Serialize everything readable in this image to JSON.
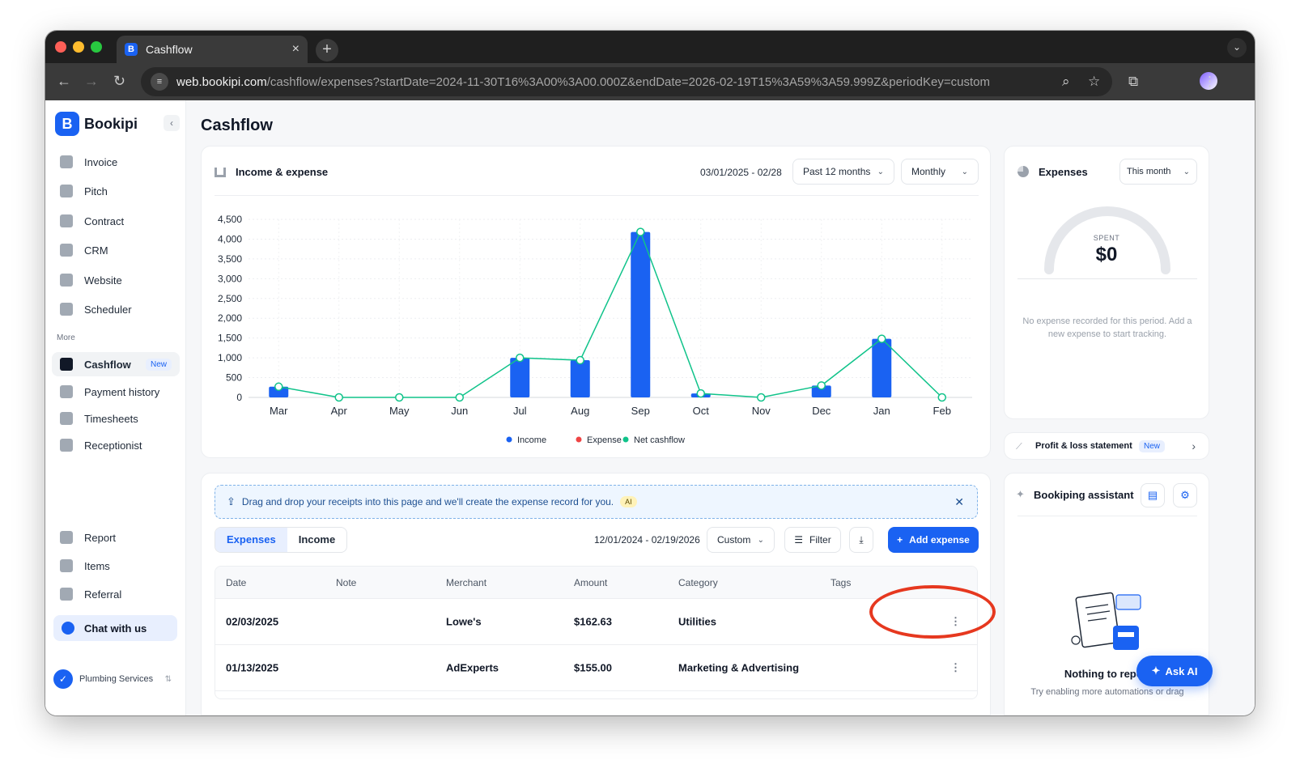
{
  "browser": {
    "tab_title": "Cashflow",
    "url_domain": "web.bookipi.com",
    "url_path": "/cashflow/expenses?startDate=2024-11-30T16%3A00%3A00.000Z&endDate=2026-02-19T15%3A59%3A59.999Z&periodKey=custom"
  },
  "sidebar": {
    "brand": "Bookipi",
    "primary": [
      {
        "label": "Invoice"
      },
      {
        "label": "Pitch"
      },
      {
        "label": "Contract"
      },
      {
        "label": "CRM"
      },
      {
        "label": "Website"
      },
      {
        "label": "Scheduler"
      }
    ],
    "more_label": "More",
    "more": [
      {
        "label": "Cashflow",
        "badge": "New",
        "active": true
      },
      {
        "label": "Payment history"
      },
      {
        "label": "Timesheets"
      },
      {
        "label": "Receptionist"
      }
    ],
    "bottom": [
      {
        "label": "Report"
      },
      {
        "label": "Items"
      },
      {
        "label": "Referral"
      }
    ],
    "chat_label": "Chat with us",
    "workspace": "Plumbing Services"
  },
  "page": {
    "title": "Cashflow"
  },
  "income_card": {
    "title": "Income & expense",
    "date_range": "03/01/2025 - 02/28",
    "period_select": "Past 12 months",
    "interval_select": "Monthly"
  },
  "chart_data": {
    "type": "bar",
    "title": "Income & expense",
    "categories": [
      "Mar",
      "Apr",
      "May",
      "Jun",
      "Jul",
      "Aug",
      "Sep",
      "Oct",
      "Nov",
      "Dec",
      "Jan",
      "Feb"
    ],
    "series": [
      {
        "name": "Income",
        "type": "bar",
        "color": "#1a62f2",
        "values": [
          270,
          0,
          0,
          0,
          1000,
          940,
          4180,
          100,
          0,
          300,
          1480,
          0
        ]
      },
      {
        "name": "Expense",
        "type": "bar",
        "color": "#ef4444",
        "values": [
          0,
          0,
          0,
          0,
          0,
          0,
          0,
          0,
          0,
          0,
          0,
          0
        ]
      },
      {
        "name": "Net cashflow",
        "type": "line",
        "color": "#10c38a",
        "values": [
          270,
          0,
          0,
          0,
          1000,
          940,
          4180,
          100,
          0,
          300,
          1480,
          0
        ]
      }
    ],
    "yticks": [
      "4,500",
      "4,000",
      "3,500",
      "3,000",
      "2,500",
      "2,000",
      "1,500",
      "1,000",
      "500",
      "0"
    ],
    "ylim": [
      0,
      4500
    ],
    "grid": true,
    "legend_position": "bottom"
  },
  "expenses_card": {
    "title": "Expenses",
    "period_select": "This month",
    "spent_label": "SPENT",
    "spent_value": "$0",
    "empty_message": "No expense recorded for this period. Add a new expense to start tracking."
  },
  "pl_card": {
    "title": "Profit & loss statement",
    "badge": "New"
  },
  "assistant_card": {
    "title": "Bookiping assistant",
    "empty_title": "Nothing to report",
    "empty_sub": "Try enabling more automations or drag"
  },
  "ask_ai": "Ask AI",
  "banner": {
    "text": "Drag and drop your receipts into this page and we'll create the expense record for you.",
    "ai": "AI"
  },
  "tabs": [
    "Expenses",
    "Income"
  ],
  "list_controls": {
    "date_range": "12/01/2024 - 02/19/2026",
    "period_select": "Custom",
    "filter_label": "Filter",
    "add_label": "Add expense"
  },
  "table": {
    "columns": [
      "Date",
      "Note",
      "Merchant",
      "Amount",
      "Category",
      "Tags"
    ],
    "rows": [
      {
        "date": "02/03/2025",
        "note": "",
        "merchant": "Lowe's",
        "amount": "$162.63",
        "category": "Utilities",
        "tags": ""
      },
      {
        "date": "01/13/2025",
        "note": "",
        "merchant": "AdExperts",
        "amount": "$155.00",
        "category": "Marketing & Advertising",
        "tags": ""
      }
    ]
  }
}
